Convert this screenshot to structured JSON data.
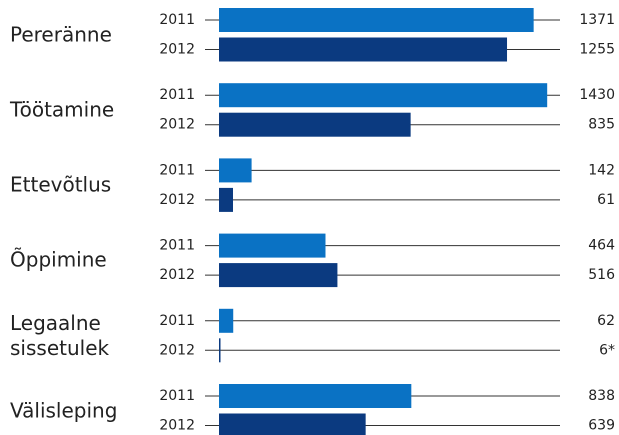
{
  "chart_data": {
    "type": "bar",
    "orientation": "horizontal",
    "categories": [
      "Pereränne",
      "Töötamine",
      "Ettevõtlus",
      "Õppimine",
      "Legaalne sissetulek",
      "Välisleping"
    ],
    "series": [
      {
        "name": "2011",
        "color": "#0a72c4",
        "values": [
          1371,
          1430,
          142,
          464,
          62,
          838
        ]
      },
      {
        "name": "2012",
        "color": "#0b3a80",
        "values": [
          1255,
          835,
          61,
          516,
          6,
          639
        ],
        "value_labels": [
          "1255",
          "835",
          "61",
          "516",
          "6*",
          "639"
        ]
      }
    ]
  }
}
